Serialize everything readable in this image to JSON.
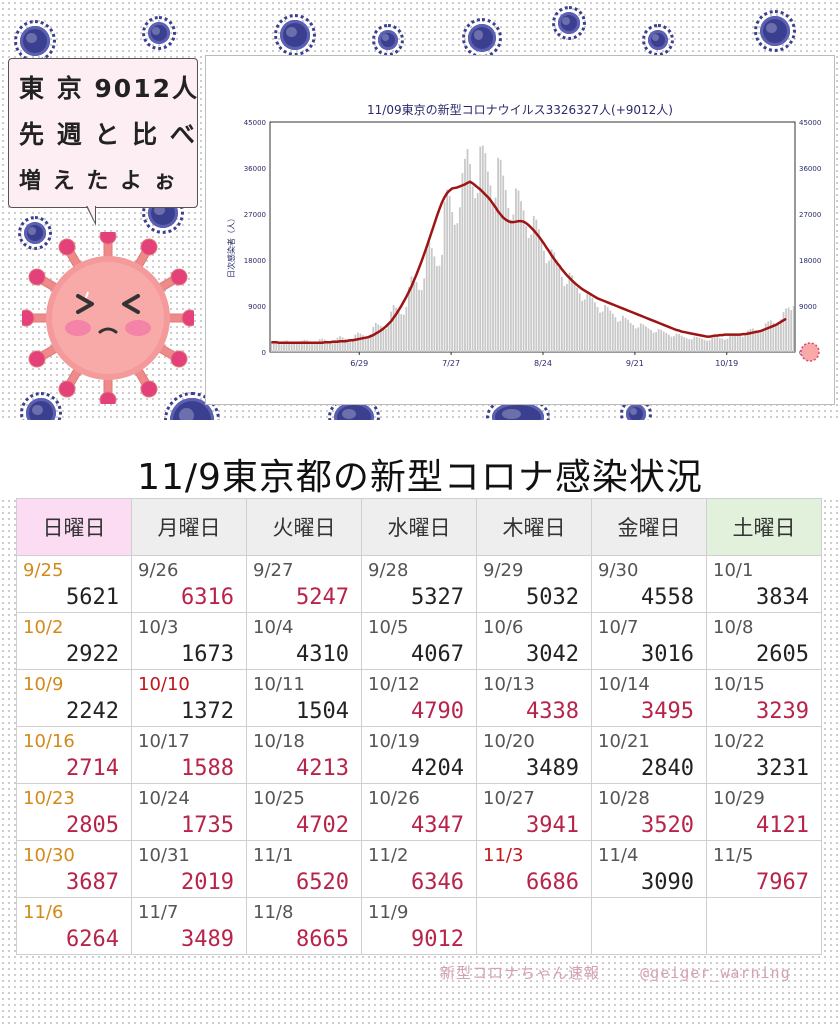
{
  "bubble": {
    "line1": "東 京 9012人",
    "line2": "先 週 と 比 べ",
    "line3": "増 え た よ ぉ"
  },
  "chart_data": {
    "type": "line",
    "title": "11/09東京の新型コロナウイルス3326327人(+9012人)",
    "ylabel": "日次感染者（人）",
    "ylim": [
      0,
      45000
    ],
    "yticks": [
      0,
      9000,
      18000,
      27000,
      36000,
      45000
    ],
    "xticks": [
      "6/29",
      "7/27",
      "8/24",
      "9/21",
      "10/19"
    ],
    "grid": false,
    "series": [
      {
        "name": "",
        "style": "bars",
        "color": "#c8c8c8",
        "values": [
          1800,
          1900,
          2000,
          1700,
          1500,
          2100,
          2300,
          2000,
          1900,
          1800,
          1600,
          1700,
          2200,
          2400,
          2300,
          2100,
          2000,
          1800,
          1900,
          2500,
          2600,
          2400,
          2200,
          2100,
          2000,
          2300,
          2800,
          3100,
          2900,
          2600,
          2400,
          2300,
          2600,
          3400,
          3800,
          3600,
          3300,
          3000,
          2900,
          3500,
          4900,
          5700,
          5400,
          5100,
          4600,
          4500,
          5500,
          7900,
          9200,
          8700,
          8200,
          7400,
          7300,
          8800,
          12700,
          14800,
          14600,
          13700,
          12200,
          12100,
          14400,
          20100,
          21500,
          20300,
          18700,
          16800,
          16900,
          19000,
          29400,
          31800,
          30500,
          27400,
          24900,
          25200,
          28300,
          35000,
          37800,
          39700,
          36800,
          32400,
          30100,
          31100,
          40200,
          40400,
          38900,
          35300,
          32600,
          29100,
          30200,
          38000,
          37600,
          34500,
          31700,
          28200,
          25900,
          26900,
          32000,
          31600,
          29500,
          27700,
          24600,
          22300,
          23000,
          26600,
          25900,
          24000,
          22100,
          19800,
          17400,
          17900,
          20100,
          19500,
          18000,
          16500,
          14700,
          12900,
          13300,
          15500,
          15000,
          13900,
          12600,
          11500,
          10000,
          10300,
          11900,
          11400,
          10600,
          9700,
          8800,
          7700,
          7900,
          9200,
          8800,
          8100,
          7500,
          6800,
          5900,
          6100,
          7100,
          6700,
          6300,
          5700,
          5300,
          4600,
          4800,
          5600,
          5400,
          5000,
          4600,
          4300,
          3800,
          3900,
          4500,
          4300,
          4000,
          3700,
          3400,
          3000,
          3100,
          3600,
          3500,
          3200,
          2900,
          2700,
          2500,
          2500,
          3000,
          2900,
          2800,
          2600,
          2400,
          2200,
          2300,
          2800,
          2900,
          2900,
          2700,
          2600,
          2400,
          2600,
          3200,
          3400,
          3500,
          3300,
          3100,
          2900,
          3200,
          4200,
          4500,
          4600,
          4300,
          4000,
          3800,
          4400,
          5600,
          6000,
          6200,
          5700,
          5300,
          5300,
          6400,
          7800,
          8500,
          8700,
          8200,
          9012
        ]
      },
      {
        "name": "",
        "style": "line",
        "color": "#9e1414",
        "values": [
          1900,
          1900,
          1900,
          1800,
          1800,
          1800,
          1800,
          1800,
          1800,
          1800,
          1800,
          1800,
          1800,
          1800,
          1800,
          1800,
          1800,
          1800,
          1800,
          1800,
          1800,
          1900,
          1900,
          1900,
          2000,
          2000,
          2000,
          2100,
          2100,
          2100,
          2200,
          2300,
          2300,
          2400,
          2500,
          2600,
          2700,
          2800,
          2900,
          3100,
          3300,
          3600,
          3900,
          4200,
          4600,
          5000,
          5500,
          6000,
          6700,
          7400,
          8200,
          9000,
          9900,
          10800,
          11800,
          12800,
          14000,
          15200,
          16500,
          17800,
          19200,
          20600,
          22100,
          23600,
          25100,
          26600,
          28000,
          29300,
          30300,
          31100,
          31600,
          32000,
          32100,
          32200,
          32400,
          32600,
          32800,
          33100,
          33300,
          33000,
          32600,
          32200,
          31800,
          31300,
          30800,
          30300,
          29700,
          29000,
          28300,
          27500,
          26900,
          26300,
          25900,
          25600,
          25400,
          25400,
          25500,
          25600,
          25600,
          25500,
          25200,
          24800,
          24300,
          23800,
          23200,
          22600,
          21900,
          21200,
          20400,
          19700,
          18900,
          18200,
          17500,
          16900,
          16200,
          15600,
          15000,
          14500,
          14000,
          13500,
          13100,
          12700,
          12300,
          12000,
          11700,
          11400,
          11100,
          10800,
          10500,
          10300,
          10100,
          9900,
          9700,
          9500,
          9300,
          9100,
          8900,
          8700,
          8500,
          8300,
          8100,
          7900,
          7700,
          7500,
          7300,
          7100,
          6900,
          6700,
          6500,
          6300,
          6100,
          5900,
          5700,
          5500,
          5300,
          5100,
          4900,
          4700,
          4500,
          4300,
          4200,
          4000,
          3900,
          3800,
          3700,
          3600,
          3500,
          3400,
          3300,
          3200,
          3100,
          3000,
          3000,
          3100,
          3200,
          3200,
          3300,
          3300,
          3400,
          3400,
          3400,
          3400,
          3400,
          3400,
          3400,
          3500,
          3500,
          3600,
          3700,
          3800,
          3900,
          4000,
          4100,
          4300,
          4500,
          4700,
          4900,
          5100,
          5300,
          5600,
          5900,
          6200,
          6500
        ]
      }
    ]
  },
  "main_title": "11/9東京都の新型コロナ感染状況",
  "weekdays": [
    "日曜日",
    "月曜日",
    "火曜日",
    "水曜日",
    "木曜日",
    "金曜日",
    "土曜日"
  ],
  "weeks": [
    [
      {
        "date": "9/25",
        "num": "5621",
        "dc": "hol",
        "nc": ""
      },
      {
        "date": "9/26",
        "num": "6316",
        "dc": "",
        "nc": "up"
      },
      {
        "date": "9/27",
        "num": "5247",
        "dc": "",
        "nc": "up"
      },
      {
        "date": "9/28",
        "num": "5327",
        "dc": "",
        "nc": ""
      },
      {
        "date": "9/29",
        "num": "5032",
        "dc": "",
        "nc": ""
      },
      {
        "date": "9/30",
        "num": "4558",
        "dc": "",
        "nc": ""
      },
      {
        "date": "10/1",
        "num": "3834",
        "dc": "",
        "nc": ""
      }
    ],
    [
      {
        "date": "10/2",
        "num": "2922",
        "dc": "hol",
        "nc": ""
      },
      {
        "date": "10/3",
        "num": "1673",
        "dc": "",
        "nc": ""
      },
      {
        "date": "10/4",
        "num": "4310",
        "dc": "",
        "nc": ""
      },
      {
        "date": "10/5",
        "num": "4067",
        "dc": "",
        "nc": ""
      },
      {
        "date": "10/6",
        "num": "3042",
        "dc": "",
        "nc": ""
      },
      {
        "date": "10/7",
        "num": "3016",
        "dc": "",
        "nc": ""
      },
      {
        "date": "10/8",
        "num": "2605",
        "dc": "",
        "nc": ""
      }
    ],
    [
      {
        "date": "10/9",
        "num": "2242",
        "dc": "hol",
        "nc": ""
      },
      {
        "date": "10/10",
        "num": "1372",
        "dc": "red",
        "nc": ""
      },
      {
        "date": "10/11",
        "num": "1504",
        "dc": "",
        "nc": ""
      },
      {
        "date": "10/12",
        "num": "4790",
        "dc": "",
        "nc": "up"
      },
      {
        "date": "10/13",
        "num": "4338",
        "dc": "",
        "nc": "up"
      },
      {
        "date": "10/14",
        "num": "3495",
        "dc": "",
        "nc": "up"
      },
      {
        "date": "10/15",
        "num": "3239",
        "dc": "",
        "nc": "up"
      }
    ],
    [
      {
        "date": "10/16",
        "num": "2714",
        "dc": "hol",
        "nc": "up"
      },
      {
        "date": "10/17",
        "num": "1588",
        "dc": "",
        "nc": "up"
      },
      {
        "date": "10/18",
        "num": "4213",
        "dc": "",
        "nc": "up"
      },
      {
        "date": "10/19",
        "num": "4204",
        "dc": "",
        "nc": ""
      },
      {
        "date": "10/20",
        "num": "3489",
        "dc": "",
        "nc": ""
      },
      {
        "date": "10/21",
        "num": "2840",
        "dc": "",
        "nc": ""
      },
      {
        "date": "10/22",
        "num": "3231",
        "dc": "",
        "nc": ""
      }
    ],
    [
      {
        "date": "10/23",
        "num": "2805",
        "dc": "hol",
        "nc": "up"
      },
      {
        "date": "10/24",
        "num": "1735",
        "dc": "",
        "nc": "up"
      },
      {
        "date": "10/25",
        "num": "4702",
        "dc": "",
        "nc": "up"
      },
      {
        "date": "10/26",
        "num": "4347",
        "dc": "",
        "nc": "up"
      },
      {
        "date": "10/27",
        "num": "3941",
        "dc": "",
        "nc": "up"
      },
      {
        "date": "10/28",
        "num": "3520",
        "dc": "",
        "nc": "up"
      },
      {
        "date": "10/29",
        "num": "4121",
        "dc": "",
        "nc": "up"
      }
    ],
    [
      {
        "date": "10/30",
        "num": "3687",
        "dc": "hol",
        "nc": "up"
      },
      {
        "date": "10/31",
        "num": "2019",
        "dc": "",
        "nc": "up"
      },
      {
        "date": "11/1",
        "num": "6520",
        "dc": "",
        "nc": "up"
      },
      {
        "date": "11/2",
        "num": "6346",
        "dc": "",
        "nc": "up"
      },
      {
        "date": "11/3",
        "num": "6686",
        "dc": "red",
        "nc": "up"
      },
      {
        "date": "11/4",
        "num": "3090",
        "dc": "",
        "nc": ""
      },
      {
        "date": "11/5",
        "num": "7967",
        "dc": "",
        "nc": "up"
      }
    ],
    [
      {
        "date": "11/6",
        "num": "6264",
        "dc": "hol",
        "nc": "up"
      },
      {
        "date": "11/7",
        "num": "3489",
        "dc": "",
        "nc": "up"
      },
      {
        "date": "11/8",
        "num": "8665",
        "dc": "",
        "nc": "up"
      },
      {
        "date": "11/9",
        "num": "9012",
        "dc": "",
        "nc": "up"
      },
      {
        "date": "",
        "num": "",
        "dc": "",
        "nc": ""
      },
      {
        "date": "",
        "num": "",
        "dc": "",
        "nc": ""
      },
      {
        "date": "",
        "num": "",
        "dc": "",
        "nc": ""
      }
    ]
  ],
  "footer": {
    "source": "新型コロナちゃん速報",
    "handle": "@geiger_warning"
  }
}
